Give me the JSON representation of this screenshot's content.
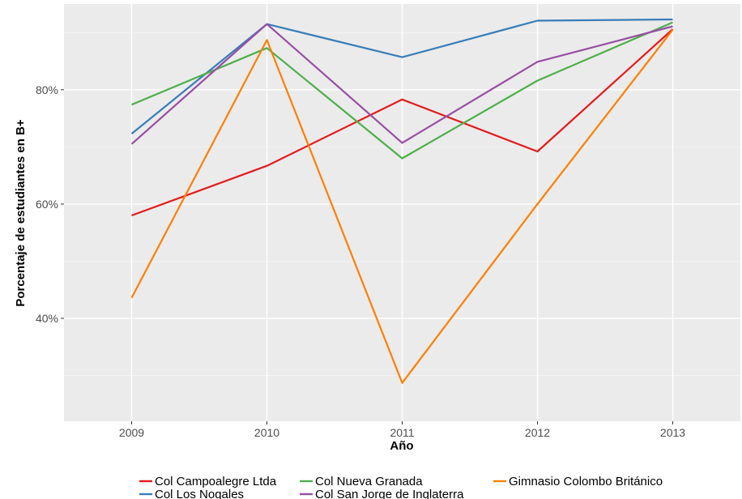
{
  "chart_data": {
    "type": "line",
    "title": "",
    "xlabel": "Año",
    "ylabel": "Porcentaje de estudiantes en B+",
    "x": [
      2009,
      2010,
      2011,
      2012,
      2013
    ],
    "x_tick_labels": [
      "2009",
      "2010",
      "2011",
      "2012",
      "2013"
    ],
    "xlim": [
      2008.5,
      2013.5
    ],
    "ylim": [
      0.22,
      0.95
    ],
    "y_ticks": [
      0.4,
      0.6,
      0.8
    ],
    "y_tick_labels": [
      "40%",
      "60%",
      "80%"
    ],
    "grid": true,
    "legend_position": "bottom",
    "series": [
      {
        "name": "Col Campoalegre Ltda",
        "color": "#e41a1c",
        "values": [
          0.58,
          0.667,
          0.783,
          0.692,
          0.906
        ]
      },
      {
        "name": "Col Los Nogales",
        "color": "#377eb8",
        "values": [
          0.723,
          0.915,
          0.857,
          0.921,
          0.923
        ]
      },
      {
        "name": "Col Nueva Granada",
        "color": "#4daf4a",
        "values": [
          0.774,
          0.873,
          0.68,
          0.816,
          0.918
        ]
      },
      {
        "name": "Col San Jorge de Inglaterra",
        "color": "#984ea3",
        "values": [
          0.705,
          0.915,
          0.707,
          0.849,
          0.911
        ]
      },
      {
        "name": "Gimnasio Colombo Británico",
        "color": "#ff7f00",
        "values": [
          0.436,
          0.887,
          0.287,
          0.6,
          0.905
        ]
      }
    ]
  }
}
